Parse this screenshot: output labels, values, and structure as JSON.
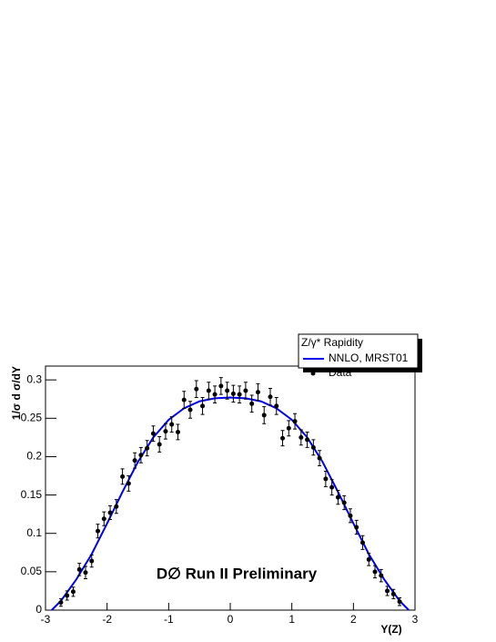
{
  "chart_data": {
    "type": "scatter",
    "legend_title": "Z/γ* Rapidity",
    "xlabel": "Y(Z)",
    "ylabel": "1/σ  d σ/dY",
    "annotation": "D∅ Run II Preliminary",
    "xlim": [
      -3,
      3
    ],
    "xticks": [
      -3,
      -2,
      -1,
      0,
      1,
      2,
      3
    ],
    "ylim": [
      0,
      0.318
    ],
    "yticks": [
      0,
      0.05,
      0.1,
      0.15,
      0.2,
      0.25,
      0.3
    ],
    "legend": "top-right",
    "series": [
      {
        "name": "NNLO, MRST01",
        "kind": "line",
        "color": "#0000ee",
        "x": [
          -2.9,
          -2.75,
          -2.5,
          -2.25,
          -2,
          -1.75,
          -1.5,
          -1.25,
          -1,
          -0.75,
          -0.5,
          -0.25,
          0,
          0.25,
          0.5,
          0.75,
          1,
          1.25,
          1.5,
          1.75,
          2,
          2.25,
          2.5,
          2.75,
          2.9
        ],
        "values": [
          0,
          0.012,
          0.04,
          0.073,
          0.113,
          0.154,
          0.193,
          0.225,
          0.248,
          0.263,
          0.272,
          0.276,
          0.277,
          0.276,
          0.272,
          0.263,
          0.248,
          0.225,
          0.193,
          0.154,
          0.113,
          0.073,
          0.04,
          0.012,
          0
        ]
      },
      {
        "name": "Data",
        "kind": "points",
        "color": "#000000",
        "x": [
          -2.75,
          -2.65,
          -2.55,
          -2.45,
          -2.35,
          -2.25,
          -2.15,
          -2.05,
          -1.95,
          -1.85,
          -1.75,
          -1.65,
          -1.55,
          -1.45,
          -1.35,
          -1.25,
          -1.15,
          -1.05,
          -0.95,
          -0.85,
          -0.75,
          -0.65,
          -0.55,
          -0.45,
          -0.35,
          -0.25,
          -0.15,
          -0.05,
          0.05,
          0.15,
          0.25,
          0.35,
          0.45,
          0.55,
          0.65,
          0.75,
          0.85,
          0.95,
          1.05,
          1.15,
          1.25,
          1.35,
          1.45,
          1.55,
          1.65,
          1.75,
          1.85,
          1.95,
          2.05,
          2.15,
          2.25,
          2.35,
          2.45,
          2.55,
          2.65,
          2.75
        ],
        "values": [
          0.01,
          0.019,
          0.024,
          0.053,
          0.049,
          0.064,
          0.103,
          0.119,
          0.127,
          0.135,
          0.174,
          0.165,
          0.195,
          0.202,
          0.211,
          0.23,
          0.216,
          0.233,
          0.242,
          0.232,
          0.274,
          0.261,
          0.288,
          0.266,
          0.286,
          0.281,
          0.292,
          0.286,
          0.282,
          0.281,
          0.286,
          0.269,
          0.284,
          0.254,
          0.278,
          0.266,
          0.224,
          0.237,
          0.246,
          0.225,
          0.222,
          0.212,
          0.198,
          0.171,
          0.16,
          0.147,
          0.14,
          0.123,
          0.108,
          0.088,
          0.066,
          0.05,
          0.045,
          0.025,
          0.021,
          0.011
        ],
        "errors": [
          0.005,
          0.006,
          0.006,
          0.008,
          0.008,
          0.008,
          0.009,
          0.009,
          0.009,
          0.009,
          0.01,
          0.01,
          0.01,
          0.01,
          0.01,
          0.01,
          0.01,
          0.01,
          0.01,
          0.01,
          0.011,
          0.011,
          0.011,
          0.011,
          0.011,
          0.011,
          0.011,
          0.011,
          0.011,
          0.011,
          0.011,
          0.011,
          0.011,
          0.011,
          0.011,
          0.011,
          0.01,
          0.01,
          0.01,
          0.01,
          0.01,
          0.01,
          0.01,
          0.01,
          0.01,
          0.009,
          0.009,
          0.009,
          0.009,
          0.009,
          0.008,
          0.008,
          0.008,
          0.006,
          0.006,
          0.005
        ]
      }
    ]
  }
}
